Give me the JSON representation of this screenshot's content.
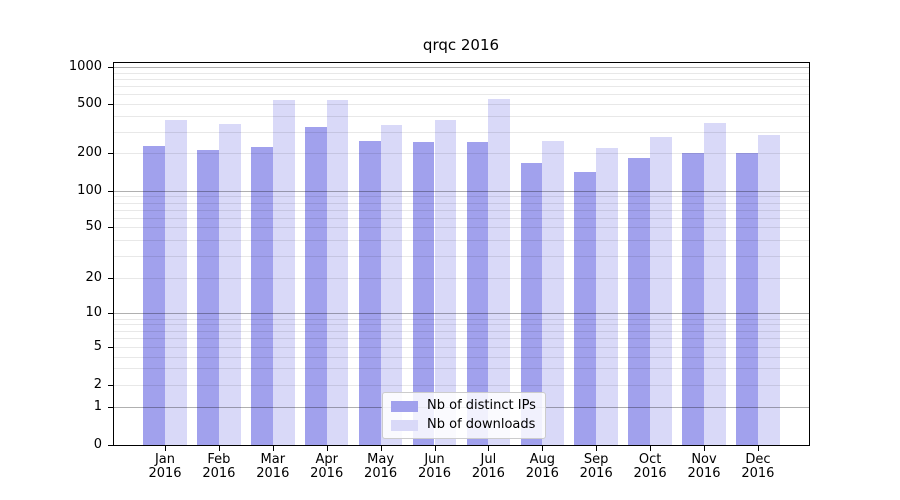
{
  "title": "qrqc 2016",
  "chart_data": {
    "type": "bar",
    "title": "qrqc 2016",
    "categories": [
      "Jan",
      "Feb",
      "Mar",
      "Apr",
      "May",
      "Jun",
      "Jul",
      "Aug",
      "Sep",
      "Oct",
      "Nov",
      "Dec"
    ],
    "category_year": "2016",
    "series": [
      {
        "name": "Nb of distinct IPs",
        "color": "#a1a1ed",
        "values": [
          230,
          211,
          224,
          328,
          251,
          249,
          247,
          168,
          142,
          183,
          200,
          200
        ]
      },
      {
        "name": "Nb of downloads",
        "color": "#d9d9f8",
        "values": [
          375,
          342,
          537,
          537,
          340,
          374,
          547,
          251,
          219,
          269,
          353,
          282
        ]
      }
    ],
    "yscale": "symlog",
    "yticks": [
      0,
      1,
      2,
      5,
      10,
      20,
      50,
      100,
      200,
      500,
      1000
    ],
    "ylim": [
      0,
      1100
    ],
    "grid": true,
    "legend_position": "lower center"
  },
  "colors": {
    "bar_distinct_ips": "#a1a1ed",
    "bar_downloads": "#d9d9f8",
    "major_grid": "#b0b0b0",
    "minor_grid": "#e8e8e8",
    "spine": "#000000"
  }
}
